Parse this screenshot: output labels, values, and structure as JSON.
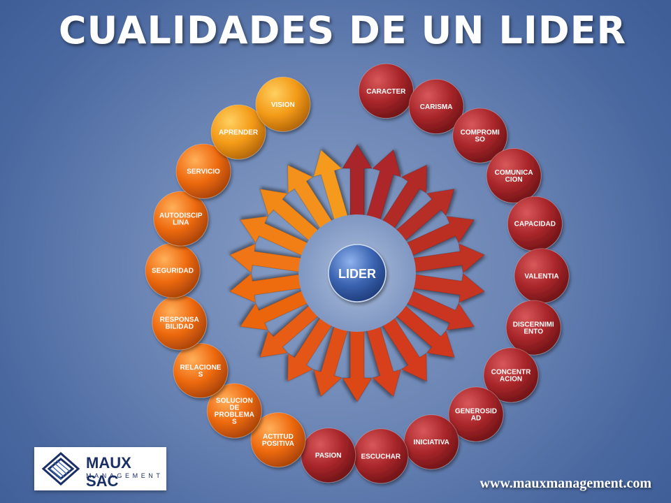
{
  "title": "CUALIDADES DE UN LIDER",
  "center": {
    "label": "LIDER"
  },
  "qualities": [
    {
      "label": "CARACTER",
      "group": "red"
    },
    {
      "label": "CARISMA",
      "group": "red"
    },
    {
      "label": "COMPROMISO",
      "group": "red"
    },
    {
      "label": "COMUNICACION",
      "group": "red"
    },
    {
      "label": "CAPACIDAD",
      "group": "red"
    },
    {
      "label": "VALENTIA",
      "group": "red"
    },
    {
      "label": "DISCERNIMIENTO",
      "group": "red"
    },
    {
      "label": "CONCENTRACION",
      "group": "red"
    },
    {
      "label": "GENEROSIDAD",
      "group": "red"
    },
    {
      "label": "INICIATIVA",
      "group": "red"
    },
    {
      "label": "ESCUCHAR",
      "group": "red"
    },
    {
      "label": "PASION",
      "group": "red"
    },
    {
      "label": "ACTITUD POSITIVA",
      "group": "orange"
    },
    {
      "label": "SOLUCION DE PROBLEMAS",
      "group": "orange"
    },
    {
      "label": "RELACIONES",
      "group": "orange"
    },
    {
      "label": "RESPONSABILIDAD",
      "group": "orange"
    },
    {
      "label": "SEGURIDAD",
      "group": "orange"
    },
    {
      "label": "AUTODISCIPLINA",
      "group": "orange"
    },
    {
      "label": "SERVICIO",
      "group": "orange"
    },
    {
      "label": "APRENDER",
      "group": "orange"
    },
    {
      "label": "VISION",
      "group": "orange"
    }
  ],
  "logo": {
    "name": "MAUX SAC",
    "subtitle": "MANAGEMENT"
  },
  "website": "www.mauxmanagement.com",
  "colors": {
    "red": "#a8262a",
    "orange": "#ee6a10",
    "center": "#3a63b0",
    "logo": "#1a2f66"
  }
}
